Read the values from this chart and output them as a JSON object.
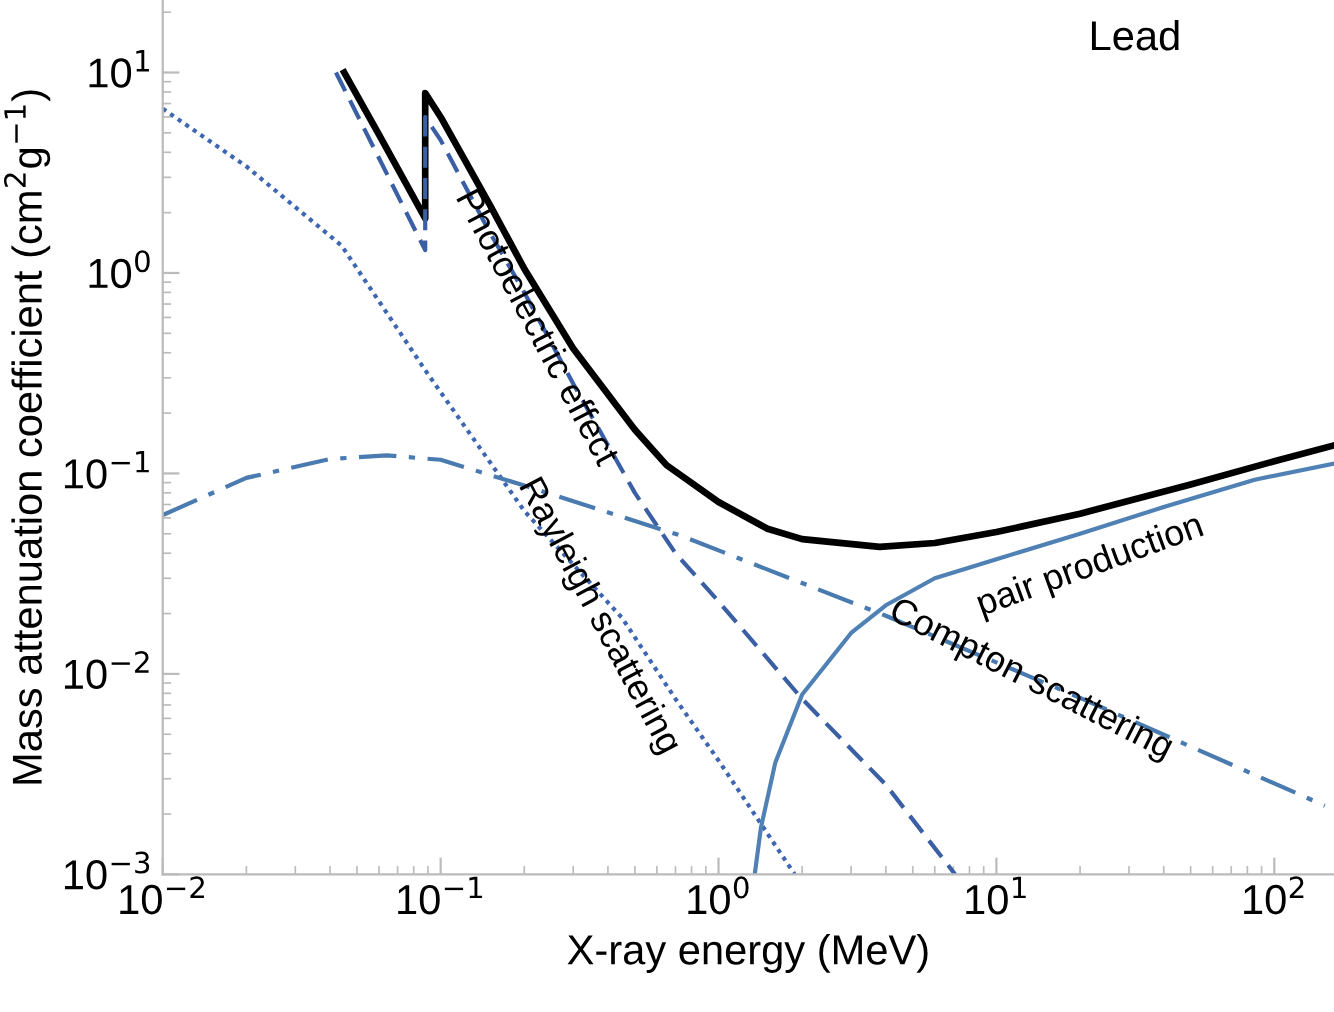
{
  "chart_data": {
    "type": "line",
    "title": "Lead",
    "xlabel": "X-ray energy (MeV)",
    "ylabel": "Mass attenuation coefficient (cm$^{2}$g$^{−1}$)",
    "log": "xy",
    "xlim": [
      0.01,
      164
    ],
    "ylim": [
      0.001,
      23
    ],
    "xticks": [
      {
        "value": 0.01,
        "label": "10$^{−2}$"
      },
      {
        "value": 0.1,
        "label": "10$^{−1}$"
      },
      {
        "value": 1,
        "label": "10$^{0}$"
      },
      {
        "value": 10,
        "label": "10$^{1}$"
      },
      {
        "value": 100,
        "label": "10$^{2}$"
      }
    ],
    "yticks": [
      {
        "value": 0.001,
        "label": "10$^{−3}$"
      },
      {
        "value": 0.01,
        "label": "10$^{−2}$"
      },
      {
        "value": 0.1,
        "label": "10$^{−1}$"
      },
      {
        "value": 1,
        "label": "10$^{0}$"
      },
      {
        "value": 10,
        "label": "10$^{1}$"
      }
    ],
    "grid": false,
    "legend": false,
    "series": [
      {
        "color": "#000000",
        "line_style": "solid",
        "x": [
          0.045,
          0.06,
          0.088,
          0.088,
          0.1,
          0.15,
          0.2,
          0.3,
          0.5,
          0.65,
          1,
          1.5,
          2,
          3.8,
          6,
          10,
          20,
          50,
          100,
          164
        ],
        "values": [
          10,
          4.9,
          1.87,
          7.9,
          6.0,
          2.2,
          1.05,
          0.42,
          0.165,
          0.11,
          0.072,
          0.053,
          0.047,
          0.043,
          0.045,
          0.051,
          0.063,
          0.088,
          0.115,
          0.138
        ]
      },
      {
        "color": "#3a5fa5",
        "line_style": "dashed",
        "x": [
          0.042,
          0.088,
          0.088,
          0.1,
          0.15,
          0.2,
          0.3,
          0.5,
          0.7,
          1,
          2,
          4,
          7.1
        ],
        "values": [
          10,
          1.3,
          6.0,
          4.6,
          1.6,
          0.8,
          0.28,
          0.08,
          0.04,
          0.023,
          0.0075,
          0.0028,
          0.001
        ]
      },
      {
        "color": "#3f66b0",
        "line_style": "dotted",
        "x": [
          0.01,
          0.02,
          0.044,
          0.089,
          0.2,
          0.45,
          0.7,
          1.0,
          1.88
        ],
        "values": [
          6.6,
          3.4,
          1.37,
          0.32,
          0.065,
          0.019,
          0.0075,
          0.0037,
          0.001
        ]
      },
      {
        "color": "#4a7bb0",
        "line_style": "dashdot",
        "x": [
          0.01,
          0.02,
          0.04,
          0.064,
          0.1,
          0.2,
          0.73,
          4,
          20,
          152
        ],
        "values": [
          0.062,
          0.095,
          0.118,
          0.123,
          0.117,
          0.087,
          0.049,
          0.0195,
          0.0076,
          0.0022
        ]
      },
      {
        "color": "#4f81b5",
        "line_style": "solid",
        "x": [
          1.35,
          1.42,
          1.6,
          2.0,
          3.0,
          4.0,
          6.0,
          9.8,
          20,
          40,
          85,
          164
        ],
        "values": [
          0.001,
          0.0017,
          0.0036,
          0.0079,
          0.016,
          0.022,
          0.03,
          0.037,
          0.05,
          0.068,
          0.093,
          0.112
        ]
      }
    ],
    "annotations": [
      "Photoelectric effect",
      "Rayleigh scattering",
      "Compton scattering",
      "pair production"
    ]
  }
}
